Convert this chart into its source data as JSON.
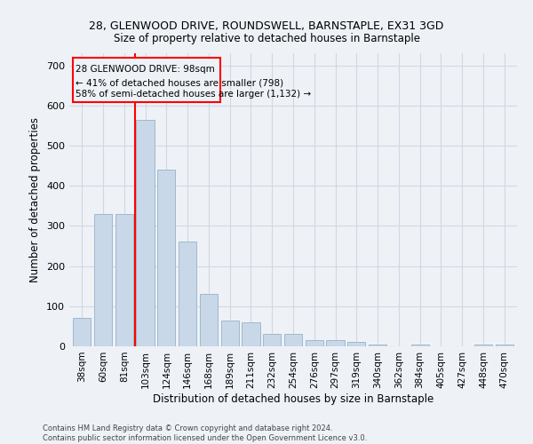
{
  "title1": "28, GLENWOOD DRIVE, ROUNDSWELL, BARNSTAPLE, EX31 3GD",
  "title2": "Size of property relative to detached houses in Barnstaple",
  "xlabel": "Distribution of detached houses by size in Barnstaple",
  "ylabel": "Number of detached properties",
  "categories": [
    "38sqm",
    "60sqm",
    "81sqm",
    "103sqm",
    "124sqm",
    "146sqm",
    "168sqm",
    "189sqm",
    "211sqm",
    "232sqm",
    "254sqm",
    "276sqm",
    "297sqm",
    "319sqm",
    "340sqm",
    "362sqm",
    "384sqm",
    "405sqm",
    "427sqm",
    "448sqm",
    "470sqm"
  ],
  "values": [
    70,
    330,
    330,
    565,
    440,
    260,
    130,
    65,
    60,
    30,
    30,
    15,
    15,
    10,
    5,
    0,
    5,
    0,
    0,
    5,
    5
  ],
  "bar_color": "#c8d8e8",
  "bar_edge_color": "#a0b8cc",
  "property_bar_index": 3,
  "annotation_line1": "28 GLENWOOD DRIVE: 98sqm",
  "annotation_line2": "← 41% of detached houses are smaller (798)",
  "annotation_line3": "58% of semi-detached houses are larger (1,132) →",
  "ylim": [
    0,
    730
  ],
  "yticks": [
    0,
    100,
    200,
    300,
    400,
    500,
    600,
    700
  ],
  "footer1": "Contains HM Land Registry data © Crown copyright and database right 2024.",
  "footer2": "Contains public sector information licensed under the Open Government Licence v3.0.",
  "bg_color": "#eef2f7",
  "grid_color": "#d0d8e4"
}
